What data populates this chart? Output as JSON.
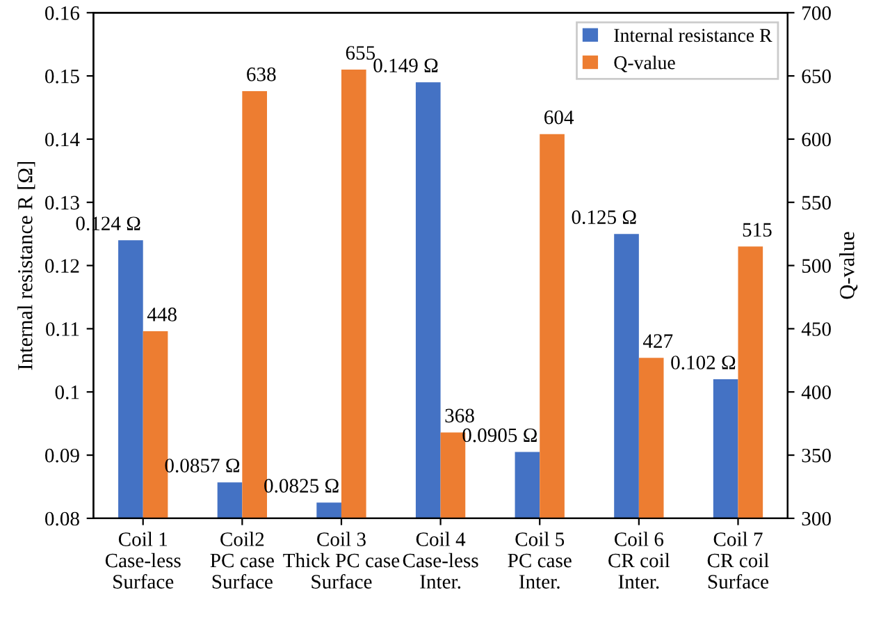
{
  "chart_data": {
    "type": "bar",
    "ylabel": "Internal resistance R [Ω]",
    "y2label": "Q-value",
    "categories": [
      "Coil 1\nCase-less\nSurface",
      "Coil2\nPC case\nSurface",
      "Coil 3\nThick PC case\nSurface",
      "Coil 4\nCase-less\nInter.",
      "Coil 5\nPC case\nInter.",
      "Coil 6\nCR coil\nInter.",
      "Coil 7\nCR coil\nSurface"
    ],
    "series": [
      {
        "name": "Internal resistance R",
        "color": "#4472c4",
        "values": [
          0.124,
          0.0857,
          0.0825,
          0.149,
          0.0905,
          0.125,
          0.102
        ],
        "value_labels": [
          "0.124 Ω",
          "0.0857 Ω",
          "0.0825 Ω",
          "0.149 Ω",
          "0.0905 Ω",
          "0.125 Ω",
          "0.102 Ω"
        ]
      },
      {
        "name": "Q-value",
        "color": "#ed7d31",
        "axis": "y2",
        "values": [
          448,
          638,
          655,
          368,
          604,
          427,
          515
        ],
        "value_labels": [
          "448",
          "638",
          "655",
          "368",
          "604",
          "427",
          "515"
        ]
      }
    ],
    "ylim": [
      0.08,
      0.16
    ],
    "yticks": [
      0.08,
      0.09,
      0.1,
      0.11,
      0.12,
      0.13,
      0.14,
      0.15,
      0.16
    ],
    "y2lim": [
      300,
      700
    ],
    "y2ticks": [
      300,
      350,
      400,
      450,
      500,
      550,
      600,
      650,
      700
    ],
    "grid": false,
    "legend": "top right"
  }
}
